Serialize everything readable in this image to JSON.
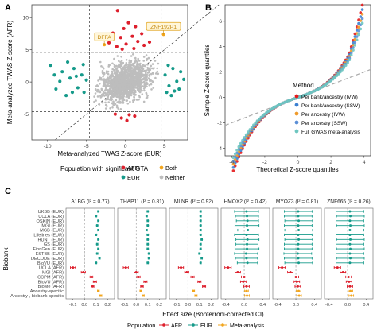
{
  "colors": {
    "afr": "#dd1f2c",
    "eur": "#159a8a",
    "both": "#f2a51c",
    "neither": "#bdbdbd",
    "meta": "#f2a51c",
    "ivw_bank": "#e41a1c",
    "ssw_bank": "#3c7fd0",
    "ivw_anc": "#ef9a2a",
    "ssw_anc": "#5b8fd6",
    "gwas": "#6ec6c0"
  },
  "chart_data": [
    {
      "type": "scatter",
      "panel": "A",
      "xlabel": "Meta-analyzed TWAS Z-score (EUR)",
      "ylabel": "Meta-analyzed TWAS Z-score (AFR)",
      "xlim": [
        -12,
        8
      ],
      "ylim": [
        -9,
        12
      ],
      "xticks": [
        -10,
        -5,
        0,
        5
      ],
      "yticks": [
        -5,
        0,
        5,
        10
      ],
      "thresholds": {
        "x": [
          -4.6,
          4.6
        ],
        "y": [
          -4.6,
          4.6
        ]
      },
      "annotations": [
        {
          "label": "DFFA",
          "x": -2.7,
          "y": 5.8
        },
        {
          "label": "ZNF192P1",
          "x": 4.9,
          "y": 7.4
        }
      ],
      "series": [
        {
          "name": "AFR",
          "points": [
            [
              -1,
              11.1
            ],
            [
              0.4,
              9.2
            ],
            [
              -0.2,
              8.3
            ],
            [
              1.3,
              8.6
            ],
            [
              -1.6,
              7.6
            ],
            [
              0.9,
              7.1
            ],
            [
              2.1,
              7.5
            ],
            [
              -0.6,
              6.9
            ],
            [
              1.6,
              6.3
            ],
            [
              -2.1,
              6.1
            ],
            [
              0.1,
              5.9
            ],
            [
              2.4,
              5.7
            ],
            [
              -1.1,
              5.5
            ],
            [
              1.1,
              5.2
            ],
            [
              3.1,
              6.2
            ],
            [
              -0.4,
              5.1
            ],
            [
              0.5,
              -5.1
            ],
            [
              -0.5,
              -5.6
            ],
            [
              1.2,
              -5.3
            ],
            [
              -1.3,
              -5.0
            ],
            [
              0.2,
              -6.0
            ]
          ]
        },
        {
          "name": "EUR",
          "points": [
            [
              -9.6,
              2.6
            ],
            [
              -8.9,
              -1.1
            ],
            [
              -8.1,
              1.6
            ],
            [
              -7.6,
              -2.1
            ],
            [
              -7.1,
              0.6
            ],
            [
              -6.6,
              2.1
            ],
            [
              -6.1,
              -0.9
            ],
            [
              -5.6,
              1.1
            ],
            [
              -5.3,
              -1.6
            ],
            [
              -5.0,
              0.3
            ],
            [
              -6.8,
              -1.6
            ],
            [
              -7.4,
              3.1
            ],
            [
              -8.4,
              0.1
            ],
            [
              -5.4,
              2.7
            ],
            [
              -6.3,
              0.9
            ],
            [
              -9.1,
              1.1
            ],
            [
              5.1,
              1.1
            ],
            [
              5.6,
              -0.6
            ],
            [
              6.1,
              2.1
            ],
            [
              6.6,
              0.1
            ],
            [
              5.3,
              -1.6
            ],
            [
              7.1,
              1.6
            ],
            [
              5.9,
              -2.1
            ],
            [
              6.9,
              -1.1
            ],
            [
              5.5,
              2.6
            ],
            [
              7.5,
              0.4
            ],
            [
              6.3,
              -1.4
            ]
          ]
        },
        {
          "name": "Both",
          "points": [
            [
              -2.7,
              5.8
            ],
            [
              4.9,
              7.4
            ]
          ]
        }
      ],
      "legend": {
        "title": "Population with significant GTA",
        "entries": [
          "AFR",
          "Both",
          "EUR",
          "Neither"
        ]
      }
    },
    {
      "type": "scatter",
      "panel": "B",
      "xlabel": "Theoretical Z-score quantiles",
      "ylabel": "Sample Z-score quantiles",
      "xlim": [
        -4.4,
        4.4
      ],
      "ylim": [
        -4.6,
        7.3
      ],
      "xticks": [
        -4,
        -2,
        0,
        2,
        4
      ],
      "yticks": [
        -4,
        -2,
        0,
        2,
        4,
        6
      ],
      "legend": {
        "title": "Method",
        "entries": [
          "Per bank/ancestry (IVW)",
          "Per bank/ancestry (SSW)",
          "Per ancestry (IVW)",
          "Per ancestry (SSW)",
          "Full GWAS meta-analysis"
        ]
      },
      "series": [
        {
          "name": "Per bank/ancestry (IVW)",
          "scale": 1.55
        },
        {
          "name": "Per bank/ancestry (SSW)",
          "scale": 1.45
        },
        {
          "name": "Per ancestry (IVW)",
          "scale": 1.35
        },
        {
          "name": "Per ancestry (SSW)",
          "scale": 1.25
        },
        {
          "name": "Full GWAS meta-analysis",
          "scale": 1.15
        }
      ]
    },
    {
      "type": "forest",
      "panel": "C",
      "ylabel": "Biobank",
      "xlabel": "Effect size (Bonferroni-corrected CI)",
      "legend": {
        "title": "Population",
        "entries": [
          "AFR",
          "EUR",
          "Meta-analysis"
        ]
      },
      "rows": [
        "UKBB (EUR)",
        "UCLA (EUR)",
        "QSKIN (EUR)",
        "MGI (EUR)",
        "MGB (EUR)",
        "Lifelines (EUR)",
        "HUNT (EUR)",
        "GS (EUR)",
        "FinnGen (EUR)",
        "ESTBB (EUR)",
        "DECODE (EUR)",
        "BioVU (EUR)",
        "UCLA (AFR)",
        "MGI (AFR)",
        "CCPM (AFR)",
        "BioVU (AFR)",
        "BioMe (AFR)",
        "Ancestry-specific",
        "Ancestry-, biobank-specific"
      ],
      "row_group": [
        "EUR",
        "EUR",
        "EUR",
        "EUR",
        "EUR",
        "EUR",
        "EUR",
        "EUR",
        "EUR",
        "EUR",
        "EUR",
        "EUR",
        "AFR",
        "AFR",
        "AFR",
        "AFR",
        "AFR",
        "META",
        "META"
      ],
      "facets": [
        {
          "gene": "A1BG",
          "i2": "0.77",
          "xlim": [
            -0.16,
            0.26
          ],
          "xticks": [
            "-0.1",
            "0.0",
            "0.1",
            "0.2"
          ],
          "tickvals": [
            -0.1,
            0.0,
            0.1,
            0.2
          ],
          "est": [
            0.12,
            0.1,
            0.12,
            0.11,
            0.12,
            0.1,
            0.12,
            0.11,
            0.12,
            0.11,
            0.13,
            0.1,
            -0.1,
            -0.01,
            0.06,
            0.09,
            0.07,
            0.12,
            0.14
          ],
          "half": [
            0.006,
            0.006,
            0.006,
            0.006,
            0.006,
            0.006,
            0.006,
            0.006,
            0.006,
            0.006,
            0.006,
            0.006,
            0.022,
            0.018,
            0.012,
            0.014,
            0.012,
            0.008,
            0.01
          ]
        },
        {
          "gene": "THAP11",
          "i2": "0.81",
          "xlim": [
            -0.16,
            0.26
          ],
          "xticks": [
            "-0.1",
            "0.0",
            "0.1",
            "0.2"
          ],
          "tickvals": [
            -0.1,
            0.0,
            0.1,
            0.2
          ],
          "est": [
            0.1,
            0.09,
            0.1,
            0.1,
            0.09,
            0.1,
            0.1,
            0.1,
            0.1,
            0.11,
            0.11,
            0.1,
            -0.09,
            0.0,
            0.02,
            0.08,
            0.05,
            0.04,
            0.06
          ],
          "half": [
            0.006,
            0.006,
            0.006,
            0.006,
            0.006,
            0.006,
            0.006,
            0.006,
            0.006,
            0.006,
            0.006,
            0.006,
            0.022,
            0.018,
            0.014,
            0.014,
            0.012,
            0.008,
            0.01
          ]
        },
        {
          "gene": "MLNR",
          "i2": "0.92",
          "xlim": [
            -0.16,
            0.26
          ],
          "xticks": [
            "-0.1",
            "0.0",
            "0.1",
            "0.2"
          ],
          "tickvals": [
            -0.1,
            0.0,
            0.1,
            0.2
          ],
          "est": [
            0.11,
            0.11,
            0.11,
            0.11,
            0.11,
            0.11,
            0.12,
            0.11,
            0.11,
            0.1,
            0.12,
            0.11,
            -0.06,
            -0.01,
            0.04,
            0.1,
            0.14,
            0.05,
            0.07
          ],
          "half": [
            0.006,
            0.006,
            0.006,
            0.006,
            0.006,
            0.006,
            0.006,
            0.006,
            0.006,
            0.006,
            0.006,
            0.006,
            0.022,
            0.018,
            0.014,
            0.014,
            0.014,
            0.008,
            0.01
          ]
        },
        {
          "gene": "HMOX2",
          "i2": "0.42",
          "xlim": [
            -0.5,
            0.55
          ],
          "xticks": [
            "-0.4",
            "0.0",
            "0.4"
          ],
          "tickvals": [
            -0.4,
            0.0,
            0.4
          ],
          "est": [
            0.05,
            0.06,
            0.07,
            0.06,
            0.08,
            0.05,
            0.07,
            0.06,
            0.06,
            0.04,
            0.05,
            0.07,
            -0.35,
            -0.14,
            0.0,
            -0.02,
            0.05,
            0.05,
            0.06
          ],
          "half": [
            0.26,
            0.25,
            0.24,
            0.26,
            0.22,
            0.26,
            0.25,
            0.24,
            0.26,
            0.25,
            0.24,
            0.22,
            0.07,
            0.06,
            0.06,
            0.06,
            0.06,
            0.04,
            0.05
          ]
        },
        {
          "gene": "MYOZ3",
          "i2": "0.81",
          "xlim": [
            -0.5,
            0.55
          ],
          "xticks": [
            "-0.4",
            "0.0",
            "0.4"
          ],
          "tickvals": [
            -0.4,
            0.0,
            0.4
          ],
          "est": [
            0.05,
            0.05,
            0.06,
            0.05,
            0.06,
            0.05,
            0.06,
            0.05,
            0.05,
            0.04,
            0.05,
            0.06,
            -0.3,
            -0.12,
            0.0,
            0.02,
            0.04,
            0.06,
            0.07
          ],
          "half": [
            0.3,
            0.3,
            0.3,
            0.3,
            0.3,
            0.3,
            0.3,
            0.3,
            0.3,
            0.3,
            0.3,
            0.3,
            0.07,
            0.06,
            0.06,
            0.06,
            0.06,
            0.05,
            0.05
          ]
        },
        {
          "gene": "ZNF665",
          "i2": "0.26",
          "xlim": [
            -0.5,
            0.55
          ],
          "xticks": [
            "-0.4",
            "0.0",
            "0.4"
          ],
          "tickvals": [
            -0.4,
            0.0,
            0.4
          ],
          "est": [
            0.05,
            0.06,
            0.05,
            0.06,
            0.05,
            0.05,
            0.06,
            0.05,
            0.06,
            0.05,
            0.06,
            0.05,
            -0.22,
            -0.1,
            0.02,
            0.03,
            0.05,
            0.06,
            0.08
          ],
          "half": [
            0.3,
            0.3,
            0.3,
            0.3,
            0.3,
            0.3,
            0.3,
            0.3,
            0.3,
            0.3,
            0.3,
            0.3,
            0.07,
            0.06,
            0.06,
            0.06,
            0.06,
            0.05,
            0.05
          ]
        }
      ]
    }
  ],
  "panels": {
    "a": "A",
    "b": "B",
    "c": "C"
  }
}
